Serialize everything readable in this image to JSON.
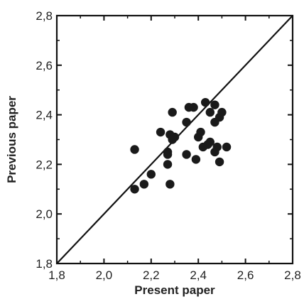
{
  "chart_data": {
    "type": "scatter",
    "title": "",
    "xlabel": "Present paper",
    "ylabel": "Previous paper",
    "xlim": [
      1.8,
      2.8
    ],
    "ylim": [
      1.8,
      2.8
    ],
    "x_ticks": [
      "1,8",
      "2,0",
      "2,2",
      "2,4",
      "2,6",
      "2,8"
    ],
    "y_ticks": [
      "1,8",
      "2,0",
      "2,2",
      "2,4",
      "2,6",
      "2,8"
    ],
    "reference_line": {
      "type": "y=x",
      "from": [
        1.8,
        1.8
      ],
      "to": [
        2.8,
        2.8
      ]
    },
    "grid": false,
    "legend": "none",
    "marker_color": "#1a1a1a",
    "points": [
      {
        "x": 2.13,
        "y": 2.26
      },
      {
        "x": 2.13,
        "y": 2.1
      },
      {
        "x": 2.17,
        "y": 2.12
      },
      {
        "x": 2.2,
        "y": 2.16
      },
      {
        "x": 2.24,
        "y": 2.33
      },
      {
        "x": 2.27,
        "y": 2.25
      },
      {
        "x": 2.27,
        "y": 2.24
      },
      {
        "x": 2.27,
        "y": 2.2
      },
      {
        "x": 2.28,
        "y": 2.12
      },
      {
        "x": 2.28,
        "y": 2.32
      },
      {
        "x": 2.29,
        "y": 2.41
      },
      {
        "x": 2.29,
        "y": 2.3
      },
      {
        "x": 2.3,
        "y": 2.31
      },
      {
        "x": 2.35,
        "y": 2.37
      },
      {
        "x": 2.35,
        "y": 2.24
      },
      {
        "x": 2.36,
        "y": 2.43
      },
      {
        "x": 2.38,
        "y": 2.43
      },
      {
        "x": 2.39,
        "y": 2.22
      },
      {
        "x": 2.4,
        "y": 2.31
      },
      {
        "x": 2.41,
        "y": 2.33
      },
      {
        "x": 2.42,
        "y": 2.27
      },
      {
        "x": 2.43,
        "y": 2.45
      },
      {
        "x": 2.44,
        "y": 2.28
      },
      {
        "x": 2.45,
        "y": 2.29
      },
      {
        "x": 2.45,
        "y": 2.41
      },
      {
        "x": 2.47,
        "y": 2.44
      },
      {
        "x": 2.47,
        "y": 2.37
      },
      {
        "x": 2.47,
        "y": 2.25
      },
      {
        "x": 2.48,
        "y": 2.27
      },
      {
        "x": 2.49,
        "y": 2.21
      },
      {
        "x": 2.49,
        "y": 2.39
      },
      {
        "x": 2.5,
        "y": 2.41
      },
      {
        "x": 2.52,
        "y": 2.27
      }
    ]
  }
}
